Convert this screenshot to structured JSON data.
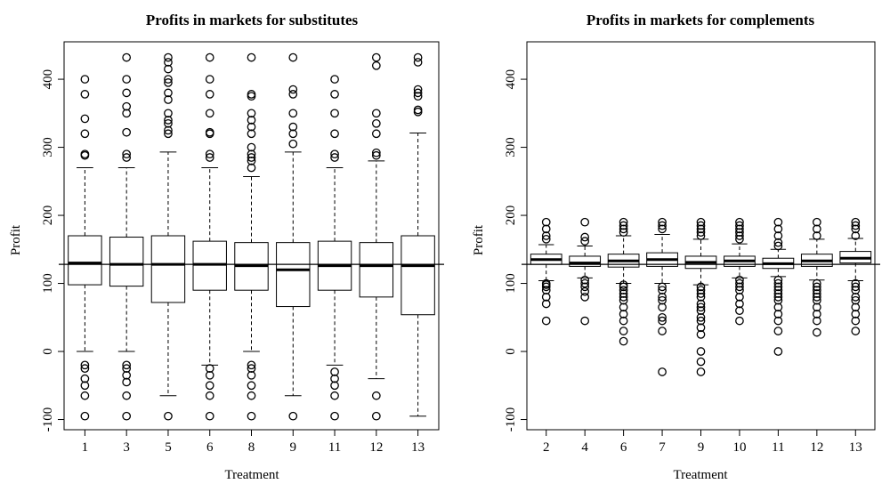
{
  "chart_data": [
    {
      "type": "boxplot",
      "title": "Profits in markets for substitutes",
      "xlabel": "Treatment",
      "ylabel": "Profit",
      "ylim": [
        -115,
        455
      ],
      "yticks": [
        -100,
        0,
        100,
        200,
        300,
        400
      ],
      "reference_line": 128,
      "categories": [
        "1",
        "3",
        "5",
        "6",
        "8",
        "9",
        "11",
        "12",
        "13"
      ],
      "boxes": [
        {
          "q1": 98,
          "median": 130,
          "q3": 170,
          "whisker_low": 0,
          "whisker_high": 270,
          "outliers": [
            -95,
            -65,
            -50,
            -40,
            -25,
            -20,
            288,
            290,
            320,
            342,
            378,
            400
          ]
        },
        {
          "q1": 96,
          "median": 128,
          "q3": 168,
          "whisker_low": 0,
          "whisker_high": 270,
          "outliers": [
            -95,
            -65,
            -45,
            -35,
            -25,
            -20,
            285,
            290,
            322,
            350,
            360,
            380,
            400,
            432
          ]
        },
        {
          "q1": 72,
          "median": 128,
          "q3": 170,
          "whisker_low": -65,
          "whisker_high": 293,
          "outliers": [
            -95,
            320,
            325,
            335,
            340,
            350,
            370,
            380,
            395,
            400,
            415,
            425,
            432
          ]
        },
        {
          "q1": 90,
          "median": 128,
          "q3": 162,
          "whisker_low": -20,
          "whisker_high": 270,
          "outliers": [
            -95,
            -65,
            -50,
            -35,
            -25,
            285,
            290,
            320,
            322,
            350,
            378,
            400,
            432
          ]
        },
        {
          "q1": 90,
          "median": 126,
          "q3": 160,
          "whisker_low": 0,
          "whisker_high": 257,
          "outliers": [
            -95,
            -65,
            -50,
            -35,
            -25,
            -20,
            270,
            280,
            285,
            290,
            300,
            320,
            330,
            340,
            350,
            375,
            378,
            432
          ]
        },
        {
          "q1": 66,
          "median": 120,
          "q3": 160,
          "whisker_low": -65,
          "whisker_high": 293,
          "outliers": [
            -95,
            305,
            320,
            330,
            350,
            378,
            385,
            432
          ]
        },
        {
          "q1": 90,
          "median": 126,
          "q3": 162,
          "whisker_low": -20,
          "whisker_high": 270,
          "outliers": [
            -95,
            -65,
            -50,
            -40,
            -30,
            285,
            290,
            320,
            350,
            378,
            400
          ]
        },
        {
          "q1": 80,
          "median": 126,
          "q3": 160,
          "whisker_low": -40,
          "whisker_high": 280,
          "outliers": [
            -95,
            -65,
            288,
            292,
            320,
            335,
            350,
            420,
            432
          ]
        },
        {
          "q1": 54,
          "median": 126,
          "q3": 170,
          "whisker_low": -95,
          "whisker_high": 321,
          "outliers": [
            352,
            355,
            375,
            380,
            385,
            425,
            432
          ]
        }
      ]
    },
    {
      "type": "boxplot",
      "title": "Profits in markets for complements",
      "xlabel": "Treatment",
      "ylabel": "Profit",
      "ylim": [
        -115,
        455
      ],
      "yticks": [
        -100,
        0,
        100,
        200,
        300,
        400
      ],
      "reference_line": 128,
      "categories": [
        "2",
        "4",
        "6",
        "7",
        "9",
        "10",
        "11",
        "12",
        "13"
      ],
      "boxes": [
        {
          "q1": 128,
          "median": 135,
          "q3": 143,
          "whisker_low": 104,
          "whisker_high": 157,
          "outliers": [
            45,
            70,
            80,
            90,
            95,
            98,
            100,
            165,
            170,
            180,
            190
          ]
        },
        {
          "q1": 125,
          "median": 130,
          "q3": 140,
          "whisker_low": 108,
          "whisker_high": 155,
          "outliers": [
            45,
            80,
            88,
            95,
            100,
            105,
            162,
            168,
            190
          ]
        },
        {
          "q1": 124,
          "median": 133,
          "q3": 143,
          "whisker_low": 100,
          "whisker_high": 170,
          "outliers": [
            15,
            30,
            45,
            55,
            65,
            75,
            80,
            85,
            90,
            95,
            98,
            175,
            180,
            185,
            190
          ]
        },
        {
          "q1": 125,
          "median": 135,
          "q3": 145,
          "whisker_low": 100,
          "whisker_high": 172,
          "outliers": [
            -30,
            30,
            45,
            50,
            65,
            75,
            80,
            90,
            95,
            180,
            185,
            190
          ]
        },
        {
          "q1": 122,
          "median": 131,
          "q3": 140,
          "whisker_low": 98,
          "whisker_high": 165,
          "outliers": [
            -30,
            -15,
            0,
            25,
            35,
            45,
            50,
            60,
            65,
            70,
            80,
            85,
            90,
            95,
            170,
            175,
            180,
            185,
            190
          ]
        },
        {
          "q1": 125,
          "median": 133,
          "q3": 140,
          "whisker_low": 108,
          "whisker_high": 158,
          "outliers": [
            45,
            60,
            70,
            80,
            90,
            95,
            100,
            105,
            165,
            170,
            175,
            180,
            185,
            190
          ]
        },
        {
          "q1": 122,
          "median": 129,
          "q3": 137,
          "whisker_low": 110,
          "whisker_high": 150,
          "outliers": [
            0,
            30,
            45,
            55,
            65,
            75,
            80,
            85,
            90,
            95,
            100,
            105,
            155,
            160,
            170,
            180,
            190
          ]
        },
        {
          "q1": 125,
          "median": 133,
          "q3": 143,
          "whisker_low": 105,
          "whisker_high": 165,
          "outliers": [
            28,
            45,
            55,
            65,
            75,
            80,
            85,
            90,
            95,
            100,
            170,
            180,
            190
          ]
        },
        {
          "q1": 130,
          "median": 137,
          "q3": 147,
          "whisker_low": 104,
          "whisker_high": 166,
          "outliers": [
            30,
            45,
            55,
            65,
            75,
            80,
            90,
            95,
            100,
            170,
            180,
            185,
            190
          ]
        }
      ]
    }
  ]
}
